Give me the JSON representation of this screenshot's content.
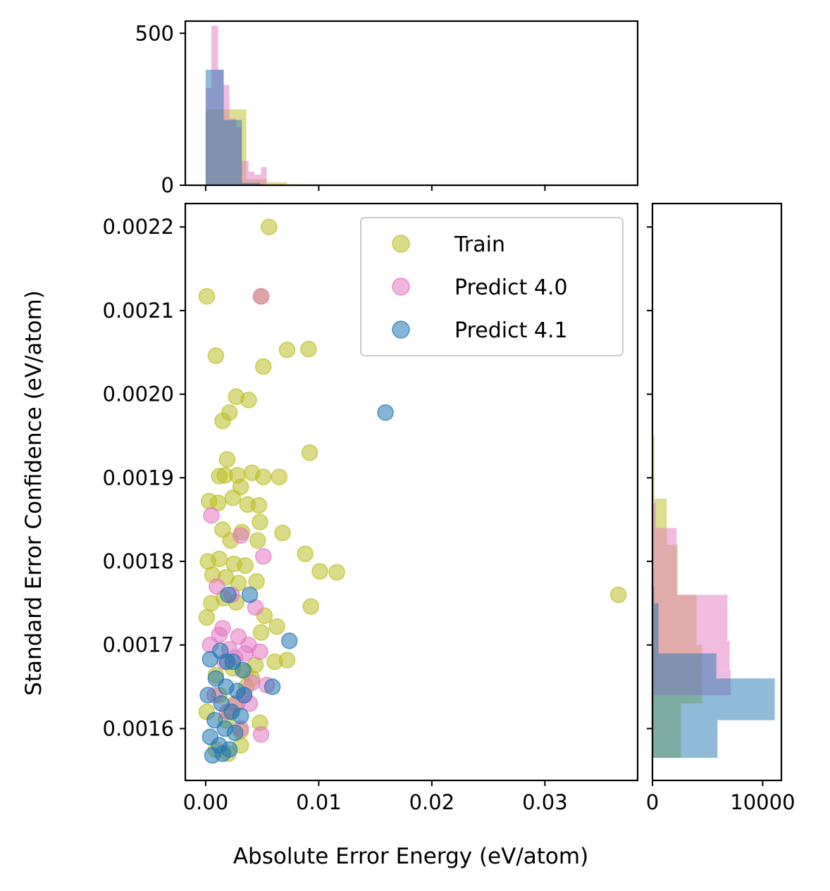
{
  "chart_data": [
    {
      "type": "scatter",
      "panel": "main",
      "xlabel": "Absolute Error Energy (eV/atom)",
      "ylabel": "Standard Error Confidence (eV/atom)",
      "xlim": [
        -0.0018,
        0.0382
      ],
      "ylim": [
        0.001538,
        0.002228
      ],
      "x_ticks": [
        0.0,
        0.01,
        0.02,
        0.03
      ],
      "x_tick_labels": [
        "0.00",
        "0.01",
        "0.02",
        "0.03"
      ],
      "y_ticks": [
        0.0016,
        0.0017,
        0.0018,
        0.0019,
        0.002,
        0.0021,
        0.0022
      ],
      "y_tick_labels": [
        "0.0016",
        "0.0017",
        "0.0018",
        "0.0019",
        "0.0020",
        "0.0021",
        "0.0022"
      ],
      "legend_position": "top-right",
      "grid": false,
      "series": [
        {
          "name": "Train",
          "color": "#bcbd22",
          "points": [
            [
              0.0056,
              0.0022
            ],
            [
              0.0001,
              0.002117
            ],
            [
              0.0049,
              0.002117
            ],
            [
              0.0009,
              0.002046
            ],
            [
              0.0072,
              0.002053
            ],
            [
              0.0091,
              0.002054
            ],
            [
              0.0051,
              0.002033
            ],
            [
              0.0027,
              0.001997
            ],
            [
              0.0038,
              0.001993
            ],
            [
              0.0021,
              0.001978
            ],
            [
              0.0015,
              0.001968
            ],
            [
              0.0092,
              0.00193
            ],
            [
              0.0019,
              0.001922
            ],
            [
              0.0012,
              0.001902
            ],
            [
              0.0017,
              0.001903
            ],
            [
              0.0028,
              0.001903
            ],
            [
              0.0041,
              0.001906
            ],
            [
              0.0051,
              0.001901
            ],
            [
              0.0065,
              0.001901
            ],
            [
              0.0031,
              0.001889
            ],
            [
              0.0024,
              0.001876
            ],
            [
              0.0003,
              0.001872
            ],
            [
              0.0011,
              0.00187
            ],
            [
              0.0037,
              0.001868
            ],
            [
              0.0047,
              0.001867
            ],
            [
              0.0048,
              0.001847
            ],
            [
              0.0068,
              0.001834
            ],
            [
              0.0015,
              0.001838
            ],
            [
              0.0022,
              0.001825
            ],
            [
              0.0032,
              0.001835
            ],
            [
              0.0046,
              0.001825
            ],
            [
              0.0088,
              0.001809
            ],
            [
              0.0101,
              0.001788
            ],
            [
              0.0116,
              0.001787
            ],
            [
              0.0002,
              0.0018
            ],
            [
              0.0012,
              0.001803
            ],
            [
              0.0025,
              0.001797
            ],
            [
              0.0035,
              0.001795
            ],
            [
              0.0006,
              0.001784
            ],
            [
              0.0018,
              0.001781
            ],
            [
              0.0029,
              0.001774
            ],
            [
              0.0045,
              0.001776
            ],
            [
              0.0093,
              0.001746
            ],
            [
              0.0365,
              0.00176
            ],
            [
              0.0005,
              0.00175
            ],
            [
              0.0016,
              0.001756
            ],
            [
              0.0027,
              0.001751
            ],
            [
              0.0052,
              0.001735
            ],
            [
              0.0063,
              0.001722
            ],
            [
              0.0049,
              0.001715
            ],
            [
              0.0001,
              0.001733
            ],
            [
              0.0072,
              0.001682
            ],
            [
              0.0061,
              0.00168
            ],
            [
              0.0044,
              0.001676
            ],
            [
              0.0035,
              0.001668
            ],
            [
              0.0024,
              0.001672
            ],
            [
              0.0009,
              0.001664
            ],
            [
              0.0048,
              0.001607
            ],
            [
              0.0018,
              0.00161
            ],
            [
              0.0031,
              0.001597
            ],
            [
              0.0009,
              0.001575
            ],
            [
              0.002,
              0.00157
            ],
            [
              0.0031,
              0.00158
            ],
            [
              0.0001,
              0.00162
            ],
            [
              0.0012,
              0.00164
            ],
            [
              0.0036,
              0.00165
            ],
            [
              0.0021,
              0.00162
            ],
            [
              0.0041,
              0.00166
            ],
            [
              0.0026,
              0.00163
            ]
          ]
        },
        {
          "name": "Predict 4.0",
          "color": "#e377c2",
          "points": [
            [
              0.0049,
              0.002117
            ],
            [
              0.0005,
              0.001855
            ],
            [
              0.0031,
              0.001831
            ],
            [
              0.0051,
              0.001806
            ],
            [
              0.0023,
              0.00176
            ],
            [
              0.0044,
              0.001745
            ],
            [
              0.001,
              0.00177
            ],
            [
              0.0015,
              0.00172
            ],
            [
              0.0029,
              0.00171
            ],
            [
              0.0038,
              0.0017
            ],
            [
              0.0004,
              0.0017
            ],
            [
              0.0021,
              0.001695
            ],
            [
              0.0035,
              0.00169
            ],
            [
              0.0012,
              0.001712
            ],
            [
              0.0048,
              0.001692
            ],
            [
              0.0026,
              0.001685
            ],
            [
              0.0017,
              0.00168
            ],
            [
              0.0041,
              0.001655
            ],
            [
              0.0054,
              0.001652
            ],
            [
              0.0034,
              0.00164
            ],
            [
              0.0049,
              0.001593
            ],
            [
              0.0028,
              0.00163
            ],
            [
              0.0019,
              0.00162
            ],
            [
              0.0039,
              0.00163
            ],
            [
              0.0008,
              0.00164
            ],
            [
              0.0031,
              0.0016
            ]
          ]
        },
        {
          "name": "Predict 4.1",
          "color": "#1f77b4",
          "points": [
            [
              0.0159,
              0.001978
            ],
            [
              0.002,
              0.00176
            ],
            [
              0.0039,
              0.00176
            ],
            [
              0.0074,
              0.001705
            ],
            [
              0.0059,
              0.00165
            ],
            [
              0.0013,
              0.001693
            ],
            [
              0.0004,
              0.001683
            ],
            [
              0.0024,
              0.00168
            ],
            [
              0.0033,
              0.00167
            ],
            [
              0.0009,
              0.00166
            ],
            [
              0.0018,
              0.00165
            ],
            [
              0.0028,
              0.001645
            ],
            [
              0.0002,
              0.00164
            ],
            [
              0.0014,
              0.00163
            ],
            [
              0.0023,
              0.00162
            ],
            [
              0.0031,
              0.001615
            ],
            [
              0.0008,
              0.00161
            ],
            [
              0.0017,
              0.0016
            ],
            [
              0.0026,
              0.001595
            ],
            [
              0.0004,
              0.00159
            ],
            [
              0.0012,
              0.00158
            ],
            [
              0.0021,
              0.001575
            ],
            [
              0.0006,
              0.001568
            ],
            [
              0.0015,
              0.00157
            ],
            [
              0.0034,
              0.00164
            ],
            [
              0.0019,
              0.00168
            ]
          ]
        }
      ]
    },
    {
      "type": "histogram",
      "panel": "top",
      "orientation": "vertical",
      "ylim": [
        0,
        540
      ],
      "y_ticks": [
        0,
        500
      ],
      "y_tick_labels": [
        "0",
        "500"
      ],
      "series": [
        {
          "name": "Train",
          "color": "#bcbd22",
          "bins": [
            [
              0.0,
              0.0018,
              250
            ],
            [
              0.0018,
              0.0036,
              250
            ],
            [
              0.0036,
              0.0054,
              20
            ],
            [
              0.0054,
              0.0072,
              10
            ],
            [
              0.0072,
              0.009,
              3
            ]
          ]
        },
        {
          "name": "Predict 4.0",
          "color": "#e377c2",
          "bins": [
            [
              0.0,
              0.0005,
              320
            ],
            [
              0.0005,
              0.0011,
              525
            ],
            [
              0.0011,
              0.0016,
              380
            ],
            [
              0.0016,
              0.0021,
              330
            ],
            [
              0.0021,
              0.0027,
              220
            ],
            [
              0.0027,
              0.0032,
              190
            ],
            [
              0.0032,
              0.0038,
              80
            ],
            [
              0.0038,
              0.0043,
              45
            ],
            [
              0.0043,
              0.0049,
              35
            ],
            [
              0.0049,
              0.0054,
              60
            ]
          ]
        },
        {
          "name": "Predict 4.1",
          "color": "#1f77b4",
          "bins": [
            [
              0.0,
              0.0016,
              380
            ],
            [
              0.0016,
              0.0032,
              215
            ],
            [
              0.0032,
              0.0048,
              8
            ],
            [
              0.0048,
              0.0064,
              2
            ],
            [
              0.0064,
              0.008,
              1
            ],
            [
              0.0144,
              0.016,
              1
            ]
          ]
        }
      ]
    },
    {
      "type": "histogram",
      "panel": "right",
      "orientation": "horizontal",
      "xlim": [
        0,
        11700
      ],
      "x_ticks": [
        0,
        10000
      ],
      "x_tick_labels": [
        "0",
        "10000"
      ],
      "series": [
        {
          "name": "Train",
          "color": "#bcbd22",
          "bins": [
            [
              0.001565,
              0.00163,
              2600
            ],
            [
              0.00163,
              0.0017,
              4500
            ],
            [
              0.0017,
              0.00176,
              4000
            ],
            [
              0.00176,
              0.00182,
              2300
            ],
            [
              0.00182,
              0.001875,
              1300
            ],
            [
              0.001875,
              0.00195,
              180
            ],
            [
              0.00195,
              0.002,
              60
            ],
            [
              0.002,
              0.0021,
              25
            ],
            [
              0.0021,
              0.0022,
              10
            ]
          ]
        },
        {
          "name": "Predict 4.0",
          "color": "#e377c2",
          "bins": [
            [
              0.00164,
              0.00167,
              7100
            ],
            [
              0.00167,
              0.001705,
              7000
            ],
            [
              0.001705,
              0.00176,
              6800
            ],
            [
              0.00176,
              0.00184,
              2200
            ],
            [
              0.00184,
              0.00187,
              300
            ]
          ]
        },
        {
          "name": "Predict 4.1",
          "color": "#1f77b4",
          "bins": [
            [
              0.001565,
              0.00161,
              5900
            ],
            [
              0.00161,
              0.00166,
              11100
            ],
            [
              0.00166,
              0.00169,
              5800
            ],
            [
              0.00169,
              0.00175,
              550
            ],
            [
              0.00175,
              0.00177,
              150
            ]
          ]
        }
      ]
    }
  ]
}
